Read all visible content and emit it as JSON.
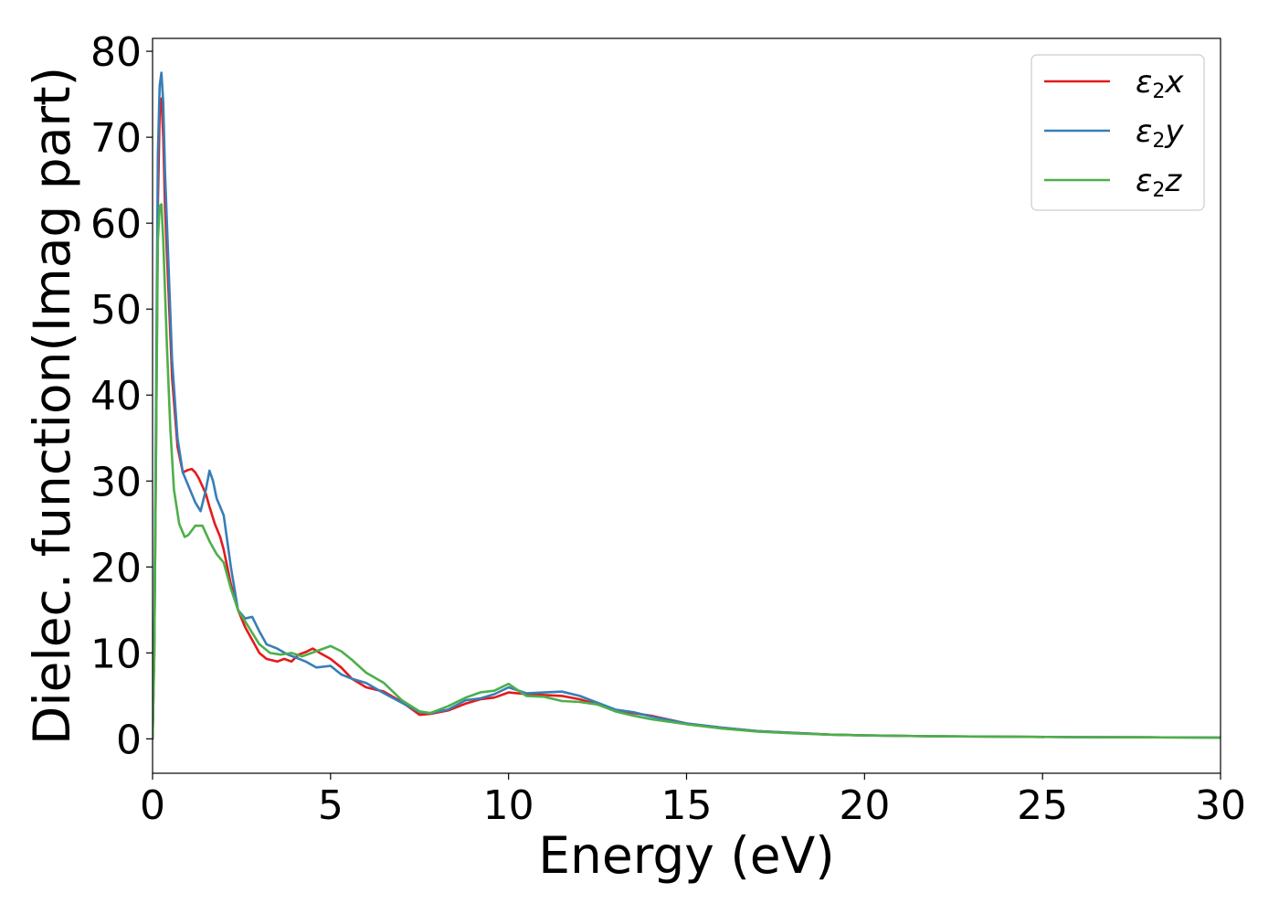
{
  "chart_data": {
    "type": "line",
    "xlabel": "Energy (eV)",
    "ylabel": "Dielec. function(Imag part)",
    "xlim": [
      0,
      30
    ],
    "ylim": [
      -4,
      81.5
    ],
    "xticks": [
      0,
      5,
      10,
      15,
      20,
      25,
      30
    ],
    "yticks": [
      0,
      10,
      20,
      30,
      40,
      50,
      60,
      70,
      80
    ],
    "grid": false,
    "legend_position": "top-right",
    "series": [
      {
        "name": "ε2x",
        "legend_base": "ε",
        "legend_sub": "2",
        "legend_tail": "x",
        "color": "#e41a1c",
        "x": [
          0,
          0.05,
          0.1,
          0.15,
          0.2,
          0.25,
          0.3,
          0.35,
          0.45,
          0.55,
          0.7,
          0.85,
          1.0,
          1.1,
          1.2,
          1.3,
          1.5,
          1.6,
          1.75,
          1.9,
          2.0,
          2.2,
          2.4,
          2.6,
          2.8,
          3.0,
          3.2,
          3.5,
          3.7,
          3.9,
          4.1,
          4.3,
          4.5,
          4.7,
          5.0,
          5.3,
          5.6,
          6.0,
          6.5,
          7.0,
          7.5,
          7.8,
          8.3,
          8.8,
          9.2,
          9.6,
          10.0,
          10.5,
          11.0,
          11.5,
          12.0,
          12.5,
          13.0,
          13.5,
          14.0,
          15.0,
          16.0,
          17.0,
          18.0,
          19.0,
          20.0,
          22.0,
          24.0,
          26.0,
          28.0,
          30.0
        ],
        "y": [
          0,
          10,
          35,
          62,
          73,
          74.5,
          70,
          62,
          52,
          42,
          34,
          31,
          31.3,
          31.4,
          31,
          30.3,
          28.5,
          27,
          25,
          23.5,
          22,
          18,
          15,
          13,
          11.5,
          10,
          9.3,
          9,
          9.3,
          9,
          9.8,
          10.1,
          10.5,
          10,
          9.3,
          8.3,
          7,
          6,
          5.5,
          4.3,
          2.8,
          2.9,
          3.3,
          4.1,
          4.6,
          4.8,
          5.4,
          5.2,
          5.1,
          5.0,
          4.6,
          4.0,
          3.3,
          3.0,
          2.7,
          1.8,
          1.3,
          0.9,
          0.7,
          0.5,
          0.4,
          0.3,
          0.25,
          0.2,
          0.18,
          0.15
        ]
      },
      {
        "name": "ε2y",
        "legend_base": "ε",
        "legend_sub": "2",
        "legend_tail": "y",
        "color": "#377eb8",
        "x": [
          0,
          0.05,
          0.1,
          0.15,
          0.2,
          0.25,
          0.3,
          0.35,
          0.45,
          0.55,
          0.7,
          0.85,
          1.0,
          1.2,
          1.35,
          1.5,
          1.6,
          1.7,
          1.8,
          1.9,
          2.0,
          2.2,
          2.4,
          2.6,
          2.8,
          3.0,
          3.2,
          3.5,
          3.8,
          4.0,
          4.3,
          4.6,
          5.0,
          5.3,
          5.6,
          6.0,
          6.5,
          7.0,
          7.5,
          7.8,
          8.3,
          8.8,
          9.2,
          9.6,
          10.0,
          10.5,
          11.0,
          11.5,
          12.0,
          12.5,
          13.0,
          13.5,
          14.0,
          15.0,
          16.0,
          17.0,
          18.0,
          19.0,
          20.0,
          22.0,
          24.0,
          26.0,
          28.0,
          30.0
        ],
        "y": [
          0,
          12,
          40,
          68,
          76,
          77.5,
          74,
          66,
          55,
          44,
          35,
          31,
          29.5,
          27.5,
          26.5,
          29,
          31.2,
          30,
          28,
          27,
          26,
          20,
          15,
          14,
          14.2,
          12.5,
          11,
          10.5,
          9.8,
          9.5,
          9,
          8.3,
          8.5,
          7.5,
          7.0,
          6.5,
          5.3,
          4.2,
          3.1,
          3.0,
          3.4,
          4.5,
          4.7,
          5.2,
          6.0,
          5.3,
          5.4,
          5.5,
          5.0,
          4.2,
          3.4,
          3.1,
          2.6,
          1.8,
          1.3,
          0.9,
          0.7,
          0.5,
          0.4,
          0.3,
          0.25,
          0.2,
          0.18,
          0.15
        ]
      },
      {
        "name": "ε2z",
        "legend_base": "ε",
        "legend_sub": "2",
        "legend_tail": "z",
        "color": "#4daf4a",
        "x": [
          0,
          0.05,
          0.1,
          0.15,
          0.2,
          0.25,
          0.3,
          0.4,
          0.5,
          0.6,
          0.75,
          0.9,
          1.0,
          1.2,
          1.4,
          1.6,
          1.8,
          2.0,
          2.2,
          2.4,
          2.7,
          3.0,
          3.3,
          3.6,
          3.9,
          4.2,
          4.6,
          5.0,
          5.3,
          5.6,
          6.0,
          6.5,
          7.0,
          7.5,
          7.8,
          8.3,
          8.8,
          9.2,
          9.6,
          10.0,
          10.5,
          11.0,
          11.5,
          12.0,
          12.5,
          13.0,
          13.5,
          14.0,
          15.0,
          16.0,
          17.0,
          18.0,
          19.0,
          20.0,
          22.0,
          24.0,
          26.0,
          28.0,
          30.0
        ],
        "y": [
          0,
          10,
          35,
          58,
          62,
          62.2,
          58,
          46,
          36,
          29,
          25,
          23.5,
          23.7,
          24.8,
          24.8,
          23,
          21.5,
          20.5,
          17.5,
          15,
          13,
          11,
          10,
          9.8,
          10,
          9.6,
          10.2,
          10.8,
          10.2,
          9.2,
          7.7,
          6.5,
          4.5,
          3.2,
          3.0,
          3.8,
          4.8,
          5.4,
          5.6,
          6.4,
          5.0,
          4.9,
          4.4,
          4.3,
          4.0,
          3.2,
          2.7,
          2.3,
          1.7,
          1.2,
          0.85,
          0.65,
          0.5,
          0.4,
          0.3,
          0.25,
          0.2,
          0.18,
          0.15
        ]
      }
    ]
  }
}
